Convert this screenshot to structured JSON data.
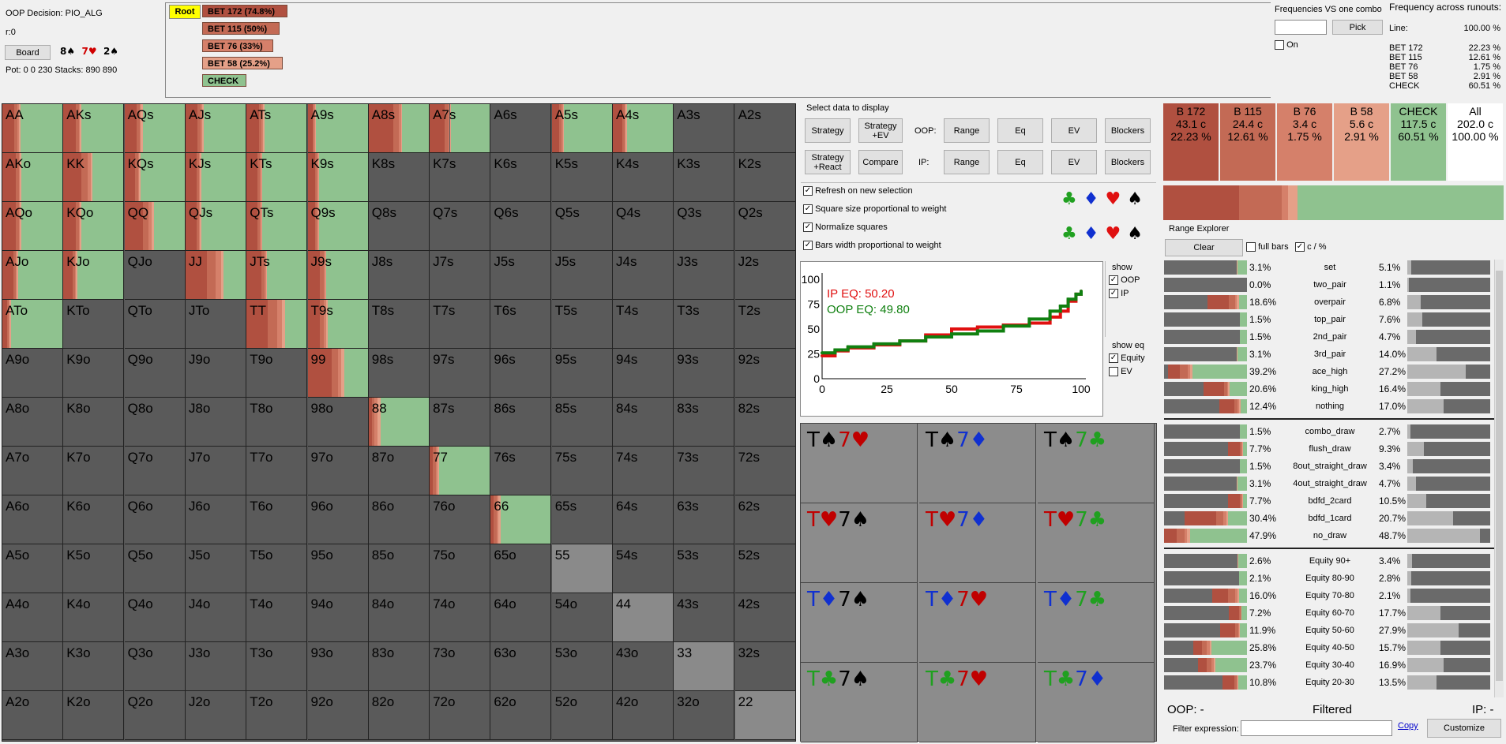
{
  "top": {
    "decision": "OOP Decision:  PIO_ALG",
    "r": "r:0",
    "board_btn": "Board",
    "board": [
      {
        "rank": "8",
        "suit": "♠",
        "color": "#000000"
      },
      {
        "rank": "7",
        "suit": "♥",
        "color": "#d00000"
      },
      {
        "rank": "2",
        "suit": "♠",
        "color": "#000000"
      }
    ],
    "pot": "Pot: 0 0 230 Stacks: 890 890"
  },
  "tree": {
    "root": "Root",
    "actions": [
      "BET 172 (74.8%)",
      "BET 115 (50%)",
      "BET 76 (33%)",
      "BET 58 (25.2%)",
      "CHECK"
    ]
  },
  "combo": {
    "title": "Frequencies VS one combo",
    "pick": "Pick",
    "on": "On"
  },
  "runouts": {
    "title": "Frequency across runouts:",
    "line_label": "Line:",
    "line_value": "100.00 %",
    "rows": [
      {
        "name": "BET 172",
        "value": "22.23 %"
      },
      {
        "name": "BET 115",
        "value": "12.61 %"
      },
      {
        "name": "BET 76",
        "value": "1.75 %"
      },
      {
        "name": "BET 58",
        "value": "2.91 %"
      },
      {
        "name": "CHECK",
        "value": "60.51 %"
      }
    ]
  },
  "colors": {
    "bet172": "#b05040",
    "bet115": "#c36a55",
    "bet76": "#d5806a",
    "bet58": "#e5a088",
    "check": "#8fc28f",
    "empty": "#5a5a5a",
    "pair_empty": "#8a8a8a"
  },
  "matrix": [
    [
      "AA",
      "AKs",
      "AQs",
      "AJs",
      "ATs",
      "A9s",
      "A8s",
      "A7s",
      "A6s",
      "A5s",
      "A4s",
      "A3s",
      "A2s"
    ],
    [
      "AKo",
      "KK",
      "KQs",
      "KJs",
      "KTs",
      "K9s",
      "K8s",
      "K7s",
      "K6s",
      "K5s",
      "K4s",
      "K3s",
      "K2s"
    ],
    [
      "AQo",
      "KQo",
      "QQ",
      "QJs",
      "QTs",
      "Q9s",
      "Q8s",
      "Q7s",
      "Q6s",
      "Q5s",
      "Q4s",
      "Q3s",
      "Q2s"
    ],
    [
      "AJo",
      "KJo",
      "QJo",
      "JJ",
      "JTs",
      "J9s",
      "J8s",
      "J7s",
      "J5s",
      "J5s",
      "J4s",
      "J3s",
      "J2s"
    ],
    [
      "ATo",
      "KTo",
      "QTo",
      "JTo",
      "TT",
      "T9s",
      "T8s",
      "T7s",
      "T6s",
      "T5s",
      "T4s",
      "T3s",
      "T2s"
    ],
    [
      "A9o",
      "K9o",
      "Q9o",
      "J9o",
      "T9o",
      "99",
      "98s",
      "97s",
      "96s",
      "95s",
      "94s",
      "93s",
      "92s"
    ],
    [
      "A8o",
      "K8o",
      "Q8o",
      "J8o",
      "T8o",
      "98o",
      "88",
      "87s",
      "86s",
      "85s",
      "84s",
      "83s",
      "82s"
    ],
    [
      "A7o",
      "K7o",
      "Q7o",
      "J7o",
      "T7o",
      "97o",
      "87o",
      "77",
      "76s",
      "75s",
      "74s",
      "73s",
      "72s"
    ],
    [
      "A6o",
      "K6o",
      "Q6o",
      "J6o",
      "T6o",
      "96o",
      "86o",
      "76o",
      "66",
      "65s",
      "64s",
      "63s",
      "62s"
    ],
    [
      "A5o",
      "K5o",
      "Q5o",
      "J5o",
      "T5o",
      "95o",
      "85o",
      "75o",
      "65o",
      "55",
      "54s",
      "53s",
      "52s"
    ],
    [
      "A4o",
      "K4o",
      "Q4o",
      "J4o",
      "T4o",
      "94o",
      "84o",
      "74o",
      "64o",
      "54o",
      "44",
      "43s",
      "42s"
    ],
    [
      "A3o",
      "K3o",
      "Q3o",
      "J3o",
      "T3o",
      "93o",
      "83o",
      "73o",
      "63o",
      "53o",
      "43o",
      "33",
      "32s"
    ],
    [
      "A2o",
      "K2o",
      "Q2o",
      "J2o",
      "T2o",
      "92o",
      "82o",
      "72o",
      "62o",
      "52o",
      "42o",
      "32o",
      "22"
    ]
  ],
  "strategy": {
    "AA": [
      0.2,
      0.05,
      0.02,
      0.03
    ],
    "AKs": [
      0.2,
      0.05,
      0.02,
      0.03
    ],
    "AQs": [
      0.2,
      0.05,
      0.02,
      0.03
    ],
    "AJs": [
      0.2,
      0.05,
      0.02,
      0.03
    ],
    "ATs": [
      0.2,
      0.05,
      0.02,
      0.03
    ],
    "A9s": [
      0.08,
      0.02,
      0.02,
      0.02
    ],
    "A8s": [
      0.4,
      0.1,
      0.03,
      0.02
    ],
    "A7s": [
      0.25,
      0.06,
      0.02,
      0.02
    ],
    "A5s": [
      0.12,
      0.04,
      0.02,
      0.02
    ],
    "A4s": [
      0.15,
      0.04,
      0.02,
      0.02
    ],
    "AKo": [
      0.22,
      0.05,
      0.02,
      0.02
    ],
    "KK": [
      0.3,
      0.1,
      0.05,
      0.03
    ],
    "KQs": [
      0.18,
      0.04,
      0.02,
      0.02
    ],
    "KJs": [
      0.18,
      0.04,
      0.02,
      0.02
    ],
    "KTs": [
      0.18,
      0.04,
      0.02,
      0.02
    ],
    "K9s": [
      0.12,
      0.03,
      0.02,
      0.02
    ],
    "AQo": [
      0.22,
      0.05,
      0.02,
      0.02
    ],
    "KQo": [
      0.2,
      0.05,
      0.02,
      0.02
    ],
    "QQ": [
      0.3,
      0.1,
      0.05,
      0.03
    ],
    "QJs": [
      0.18,
      0.04,
      0.02,
      0.02
    ],
    "QTs": [
      0.18,
      0.04,
      0.02,
      0.02
    ],
    "Q9s": [
      0.12,
      0.03,
      0.02,
      0.02
    ],
    "AJo": [
      0.18,
      0.04,
      0.02,
      0.02
    ],
    "KJo": [
      0.15,
      0.04,
      0.02,
      0.02
    ],
    "JJ": [
      0.35,
      0.15,
      0.08,
      0.05
    ],
    "JTs": [
      0.25,
      0.05,
      0.02,
      0.02
    ],
    "J9s": [
      0.2,
      0.06,
      0.03,
      0.02
    ],
    "ATo": [
      0.08,
      0.02,
      0.02,
      0.02
    ],
    "TT": [
      0.35,
      0.15,
      0.08,
      0.05
    ],
    "T9s": [
      0.2,
      0.07,
      0.03,
      0.03
    ],
    "99": [
      0.4,
      0.1,
      0.05,
      0.05
    ],
    "88": [
      0.05,
      0.05,
      0.05,
      0.05
    ],
    "77": [
      0.05,
      0.05,
      0.03,
      0.03
    ],
    "66": [
      0.05,
      0.05,
      0.03,
      0.03
    ]
  },
  "pairs_empty": [
    "55",
    "44",
    "33",
    "22"
  ],
  "select": {
    "title": "Select data to display",
    "strategy": "Strategy",
    "strategy_ev": "Strategy +EV",
    "strategy_react": "Strategy +React",
    "compare": "Compare",
    "oop": "OOP:",
    "ip": "IP:",
    "range": "Range",
    "eq": "Eq",
    "ev": "EV",
    "blockers": "Blockers"
  },
  "options": [
    "Refresh on new selection",
    "Square size proportional to weight",
    "Normalize squares",
    "Bars width proportional to weight"
  ],
  "suits": [
    {
      "s": "♣",
      "c": "#20a020"
    },
    {
      "s": "♦",
      "c": "#1030d0"
    },
    {
      "s": "♥",
      "c": "#e01010"
    },
    {
      "s": "♠",
      "c": "#000000"
    }
  ],
  "equity_chart": {
    "ip_label": "IP EQ: 50.20",
    "oop_label": "OOP EQ: 49.80",
    "show": "show",
    "oop": "OOP",
    "ip": "IP",
    "show_eq": "show eq",
    "equity": "Equity",
    "ev": "EV",
    "yticks": [
      "100",
      "75",
      "50",
      "25",
      "0"
    ],
    "xticks": [
      "0",
      "25",
      "50",
      "75",
      "100"
    ]
  },
  "chart_data": {
    "type": "line",
    "xlim": [
      0,
      100
    ],
    "ylim": [
      0,
      100
    ],
    "series": [
      {
        "name": "IP EQ: 50.20",
        "color": "#e01010",
        "x": [
          0,
          5,
          10,
          20,
          30,
          40,
          50,
          60,
          70,
          80,
          88,
          92,
          95,
          98,
          100
        ],
        "y": [
          23,
          28,
          31,
          34,
          38,
          44,
          50,
          52,
          54,
          56,
          62,
          68,
          78,
          85,
          88
        ]
      },
      {
        "name": "OOP EQ: 49.80",
        "color": "#108010",
        "x": [
          0,
          5,
          10,
          20,
          30,
          40,
          50,
          60,
          70,
          80,
          88,
          92,
          95,
          98,
          100
        ],
        "y": [
          26,
          29,
          32,
          35,
          38,
          42,
          45,
          48,
          53,
          60,
          68,
          73,
          80,
          85,
          88
        ]
      }
    ]
  },
  "turns": [
    [
      "T♠7♥",
      "T♠7♦",
      "T♠7♣"
    ],
    [
      "T♥7♠",
      "T♥7♦",
      "T♥7♣"
    ],
    [
      "T♦7♠",
      "T♦7♥",
      "T♦7♣"
    ],
    [
      "T♣7♠",
      "T♣7♥",
      "T♣7♦"
    ]
  ],
  "summary": [
    {
      "name": "B 172",
      "c": "43.1 c",
      "p": "22.23 %",
      "color": "#b05040"
    },
    {
      "name": "B 115",
      "c": "24.4 c",
      "p": "12.61 %",
      "color": "#c36a55"
    },
    {
      "name": "B 76",
      "c": "3.4 c",
      "p": "1.75 %",
      "color": "#d5806a"
    },
    {
      "name": "B 58",
      "c": "5.6 c",
      "p": "2.91 %",
      "color": "#e5a088"
    },
    {
      "name": "CHECK",
      "c": "117.5 c",
      "p": "60.51 %",
      "color": "#8fc28f"
    },
    {
      "name": "All",
      "c": "202.0 c",
      "p": "100.00 %",
      "color": "#ffffff"
    }
  ],
  "explorer": {
    "title": "Range Explorer",
    "clear": "Clear",
    "full_bars": "full bars",
    "cpct": "c / %",
    "groups": [
      [
        {
          "n": "set",
          "l": "3.1%",
          "r": "5.1%",
          "rf": 0.05,
          "mix": [
            0,
            0,
            0,
            0.02
          ]
        },
        {
          "n": "two_pair",
          "l": "0.0%",
          "r": "1.1%",
          "rf": 0.02,
          "mix": [
            0,
            0,
            0,
            0
          ]
        },
        {
          "n": "overpair",
          "l": "18.6%",
          "r": "6.8%",
          "rf": 0.16,
          "mix": [
            0.55,
            0.15,
            0.05,
            0.05
          ]
        },
        {
          "n": "top_pair",
          "l": "1.5%",
          "r": "7.6%",
          "rf": 0.18,
          "mix": [
            0,
            0,
            0,
            0.03
          ]
        },
        {
          "n": "2nd_pair",
          "l": "1.5%",
          "r": "4.7%",
          "rf": 0.1,
          "mix": [
            0,
            0,
            0,
            0.03
          ]
        },
        {
          "n": "3rd_pair",
          "l": "3.1%",
          "r": "14.0%",
          "rf": 0.35,
          "mix": [
            0,
            0,
            0,
            0.03
          ]
        },
        {
          "n": "ace_high",
          "l": "39.2%",
          "r": "27.2%",
          "rf": 0.7,
          "mix": [
            0.15,
            0.1,
            0.03,
            0.03
          ]
        },
        {
          "n": "king_high",
          "l": "20.6%",
          "r": "16.4%",
          "rf": 0.4,
          "mix": [
            0.48,
            0.07,
            0.02,
            0.03
          ]
        },
        {
          "n": "nothing",
          "l": "12.4%",
          "r": "17.0%",
          "rf": 0.44,
          "mix": [
            0.55,
            0.12,
            0.05,
            0.05
          ]
        }
      ],
      [
        {
          "n": "combo_draw",
          "l": "1.5%",
          "r": "2.7%",
          "rf": 0.04,
          "mix": [
            0,
            0,
            0,
            0.02
          ]
        },
        {
          "n": "flush_draw",
          "l": "7.7%",
          "r": "9.3%",
          "rf": 0.2,
          "mix": [
            0.62,
            0.1,
            0.03,
            0.03
          ]
        },
        {
          "n": "8out_straight_draw",
          "l": "1.5%",
          "r": "3.4%",
          "rf": 0.07,
          "mix": [
            0,
            0,
            0,
            0.02
          ]
        },
        {
          "n": "4out_straight_draw",
          "l": "3.1%",
          "r": "4.7%",
          "rf": 0.1,
          "mix": [
            0,
            0,
            0,
            0.02
          ]
        },
        {
          "n": "bdfd_2card",
          "l": "7.7%",
          "r": "10.5%",
          "rf": 0.23,
          "mix": [
            0.62,
            0.1,
            0.03,
            0.03
          ]
        },
        {
          "n": "bdfd_1card",
          "l": "30.4%",
          "r": "20.7%",
          "rf": 0.55,
          "mix": [
            0.5,
            0.12,
            0.05,
            0.03
          ]
        },
        {
          "n": "no_draw",
          "l": "47.9%",
          "r": "48.7%",
          "rf": 0.88,
          "mix": [
            0.15,
            0.1,
            0.03,
            0.03
          ]
        }
      ],
      [
        {
          "n": "Equity 90+",
          "l": "2.6%",
          "r": "3.4%",
          "rf": 0.06,
          "mix": [
            0,
            0,
            0,
            0.02
          ]
        },
        {
          "n": "Equity 80-90",
          "l": "2.1%",
          "r": "2.8%",
          "rf": 0.05,
          "mix": [
            0,
            0,
            0,
            0.02
          ]
        },
        {
          "n": "Equity 70-80",
          "l": "16.0%",
          "r": "2.1%",
          "rf": 0.04,
          "mix": [
            0.45,
            0.2,
            0.08,
            0.05
          ]
        },
        {
          "n": "Equity 60-70",
          "l": "7.2%",
          "r": "17.7%",
          "rf": 0.4,
          "mix": [
            0.55,
            0.1,
            0.03,
            0.03
          ]
        },
        {
          "n": "Equity 50-60",
          "l": "11.9%",
          "r": "27.9%",
          "rf": 0.62,
          "mix": [
            0.55,
            0.12,
            0.03,
            0.03
          ]
        },
        {
          "n": "Equity 40-50",
          "l": "25.8%",
          "r": "15.7%",
          "rf": 0.4,
          "mix": [
            0.15,
            0.1,
            0.05,
            0.03
          ]
        },
        {
          "n": "Equity 30-40",
          "l": "23.7%",
          "r": "16.9%",
          "rf": 0.44,
          "mix": [
            0.18,
            0.1,
            0.05,
            0.03
          ]
        },
        {
          "n": "Equity 20-30",
          "l": "10.8%",
          "r": "13.5%",
          "rf": 0.35,
          "mix": [
            0.5,
            0.1,
            0.03,
            0.03
          ]
        }
      ]
    ]
  },
  "footer": {
    "oop": "OOP: -",
    "filtered": "Filtered",
    "ip": "IP: -",
    "filter_label": "Filter expression:",
    "copy": "Copy",
    "customize": "Customize"
  }
}
